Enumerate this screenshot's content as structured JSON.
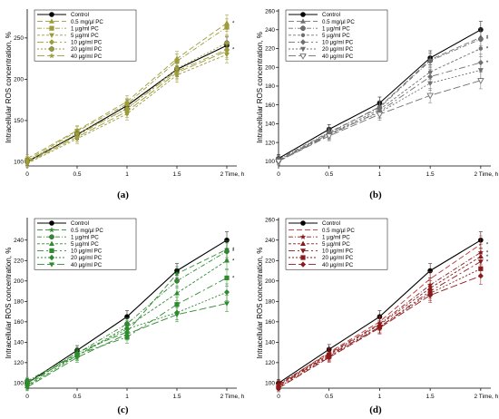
{
  "x": [
    0,
    0.5,
    1,
    1.5,
    2
  ],
  "x_tick_labels": [
    "0",
    "0.5",
    "1",
    "1.5",
    "2"
  ],
  "x_last_label": "2 Time, h",
  "panel_labels": [
    "(a)",
    "(b)",
    "(c)",
    "(d)"
  ],
  "chart_data": [
    {
      "type": "line",
      "panel": "(a)",
      "ylabel": "Intracellular ROS concentration, %",
      "xlabel": "Time, h",
      "xlim": [
        0,
        2.1
      ],
      "ylim": [
        95,
        285
      ],
      "yticks": [
        100,
        150,
        200,
        250
      ],
      "legend_position": "top-left",
      "grid": false,
      "series": [
        {
          "name": "Control",
          "values": [
            100,
            133,
            168,
            212,
            241
          ],
          "color": "#000000",
          "marker": "circle"
        },
        {
          "name": "0.5 mg/µl PC",
          "values": [
            104,
            138,
            173,
            225,
            268
          ],
          "color": "#9c9c3a",
          "marker": "triangle"
        },
        {
          "name": "1 µg/ml PC",
          "values": [
            102,
            137,
            170,
            222,
            263
          ],
          "color": "#9c9c3a",
          "marker": "square"
        },
        {
          "name": "5 µg/ml PC",
          "values": [
            98,
            128,
            158,
            205,
            230
          ],
          "color": "#9c9c3a",
          "marker": "triangle-down"
        },
        {
          "name": "10 µg/ml PC",
          "values": [
            100,
            132,
            165,
            210,
            236
          ],
          "color": "#9c9c3a",
          "marker": "diamond"
        },
        {
          "name": "20 µg/ml PC",
          "values": [
            101,
            134,
            164,
            213,
            244
          ],
          "color": "#9c9c3a",
          "marker": "hexagon"
        },
        {
          "name": "40 µg/ml PC",
          "values": [
            99,
            130,
            161,
            208,
            234
          ],
          "color": "#9c9c3a",
          "marker": "star"
        }
      ],
      "significance_markers": [
        "*",
        "*"
      ]
    },
    {
      "type": "line",
      "panel": "(b)",
      "ylabel": "Intracellular ROS concentration, %",
      "xlabel": "Time, h",
      "xlim": [
        0,
        2.1
      ],
      "ylim": [
        95,
        262
      ],
      "yticks": [
        100,
        120,
        140,
        160,
        180,
        200,
        220,
        240,
        260
      ],
      "legend_position": "top-left",
      "grid": false,
      "series": [
        {
          "name": "Control",
          "values": [
            103,
            134,
            162,
            210,
            240
          ],
          "color": "#000000",
          "marker": "circle"
        },
        {
          "name": "0.5 mg/µl PC",
          "values": [
            101,
            130,
            158,
            208,
            232
          ],
          "color": "#707070",
          "marker": "triangle"
        },
        {
          "name": "1 µg/ml PC",
          "values": [
            102,
            131,
            157,
            207,
            230
          ],
          "color": "#707070",
          "marker": "hexagon"
        },
        {
          "name": "5  µg/ml PC",
          "values": [
            100,
            129,
            155,
            195,
            220
          ],
          "color": "#707070",
          "marker": "circle-small"
        },
        {
          "name": "10 µg/ml PC",
          "values": [
            100,
            128,
            153,
            190,
            205
          ],
          "color": "#707070",
          "marker": "diamond"
        },
        {
          "name": "20 µg/ml PC",
          "values": [
            101,
            129,
            152,
            183,
            197
          ],
          "color": "#707070",
          "marker": "triangle-down"
        },
        {
          "name": "40 µg/ml PC",
          "values": [
            100,
            127,
            150,
            170,
            186
          ],
          "color": "#707070",
          "marker": "triangle-down-open"
        }
      ],
      "significance_markers": [
        "*",
        "*",
        "*",
        "*"
      ]
    },
    {
      "type": "line",
      "panel": "(c)",
      "ylabel": "Intracellular ROS concentration, %",
      "xlabel": "Time, h",
      "xlim": [
        0,
        2.1
      ],
      "ylim": [
        95,
        262
      ],
      "yticks": [
        100,
        120,
        140,
        160,
        180,
        200,
        220,
        240
      ],
      "legend_position": "top-left",
      "grid": false,
      "series": [
        {
          "name": "Control",
          "values": [
            100,
            132,
            165,
            210,
            240
          ],
          "color": "#000000",
          "marker": "circle"
        },
        {
          "name": "0.5 mg/µl PC",
          "values": [
            98,
            130,
            150,
            207,
            231
          ],
          "color": "#2e8b2e",
          "marker": "star"
        },
        {
          "name": "1 µg/ml PC",
          "values": [
            102,
            129,
            158,
            200,
            229
          ],
          "color": "#2e8b2e",
          "marker": "hexagon"
        },
        {
          "name": "5  µg/ml PC",
          "values": [
            97,
            127,
            155,
            188,
            220
          ],
          "color": "#2e8b2e",
          "marker": "triangle"
        },
        {
          "name": "10 µg/ml PC",
          "values": [
            100,
            128,
            145,
            177,
            203
          ],
          "color": "#2e8b2e",
          "marker": "square"
        },
        {
          "name": "20 µg/ml PC",
          "values": [
            101,
            127,
            153,
            169,
            189
          ],
          "color": "#2e8b2e",
          "marker": "diamond"
        },
        {
          "name": "40 µg/ml PC",
          "values": [
            96,
            125,
            148,
            167,
            178
          ],
          "color": "#2e8b2e",
          "marker": "triangle-down"
        }
      ],
      "significance_markers": [
        "*",
        "*",
        "*",
        "*"
      ]
    },
    {
      "type": "line",
      "panel": "(d)",
      "ylabel": "Intracellular ROS concentration, %",
      "xlabel": "Time, h",
      "xlim": [
        0,
        2.1
      ],
      "ylim": [
        95,
        262
      ],
      "yticks": [
        100,
        120,
        140,
        160,
        180,
        200,
        220,
        240,
        260
      ],
      "legend_position": "top-left",
      "grid": false,
      "series": [
        {
          "name": "Control",
          "values": [
            100,
            133,
            165,
            210,
            240
          ],
          "color": "#000000",
          "marker": "circle"
        },
        {
          "name": "0.5 mg/µl PC",
          "values": [
            98,
            130,
            160,
            202,
            236
          ],
          "color": "#c03030",
          "marker": "none"
        },
        {
          "name": "1 µg/ml PC",
          "values": [
            99,
            129,
            158,
            196,
            228
          ],
          "color": "#8b1a1a",
          "marker": "star"
        },
        {
          "name": "5  µg/ml PC",
          "values": [
            98,
            128,
            157,
            193,
            224
          ],
          "color": "#8b1a1a",
          "marker": "triangle"
        },
        {
          "name": "10 µg/ml PC",
          "values": [
            97,
            127,
            155,
            190,
            219
          ],
          "color": "#8b1a1a",
          "marker": "triangle-down"
        },
        {
          "name": "20 µg/ml PC",
          "values": [
            96,
            126,
            155,
            188,
            212
          ],
          "color": "#8b1a1a",
          "marker": "square"
        },
        {
          "name": "40 µg/ml PC",
          "values": [
            95,
            125,
            154,
            186,
            205
          ],
          "color": "#8b1a1a",
          "marker": "diamond"
        }
      ],
      "significance_markers": [
        "*",
        "*",
        "*",
        "*"
      ]
    }
  ]
}
